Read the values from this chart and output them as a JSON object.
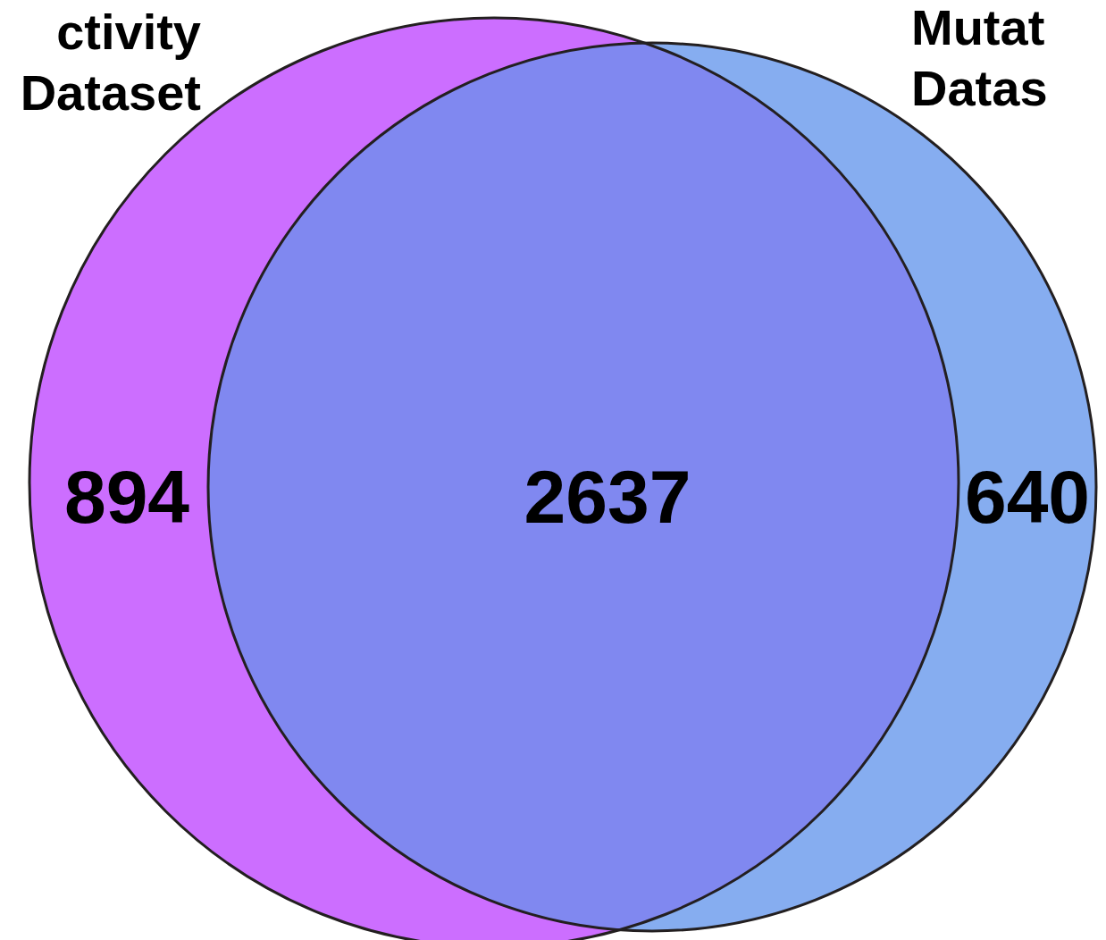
{
  "chart_data": {
    "type": "other",
    "data_labels": true,
    "categories": [
      "ctivity\nDataset",
      null,
      "Mutat\nDatas"
    ],
    "values": [
      894,
      2637,
      640
    ],
    "colors": [
      "#cc6eff",
      "#8088f0",
      "#86adf0"
    ]
  }
}
